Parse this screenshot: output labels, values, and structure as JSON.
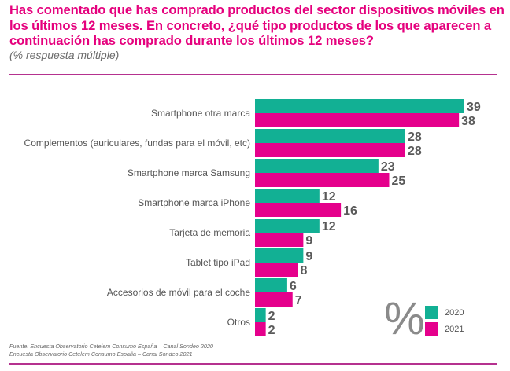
{
  "header": {
    "title": "Has comentado que has comprado productos del sector dispositivos móviles en los últimos 12 meses.  En concreto, ¿qué tipo productos de los que aparecen a continuación has comprado durante los últimos 12 meses?",
    "subtitle": "(% respuesta múltiple)"
  },
  "chart_data": {
    "type": "bar",
    "orientation": "horizontal",
    "title": "Has comentado que has comprado productos del sector dispositivos móviles en los últimos 12 meses. En concreto, ¿qué tipo productos de los que aparecen a continuación has comprado durante los últimos 12 meses?",
    "subtitle": "(% respuesta múltiple)",
    "unit_label": "%",
    "categories": [
      "Smartphone otra marca",
      "Complementos (auriculares, fundas para el móvil, etc)",
      "Smartphone marca Samsung",
      "Smartphone marca iPhone",
      "Tarjeta de memoria",
      "Tablet tipo iPad",
      "Accesorios de móvil para el coche",
      "Otros"
    ],
    "series": [
      {
        "name": "2020",
        "color": "#12b094",
        "values": [
          39,
          28,
          23,
          12,
          12,
          9,
          6,
          2
        ]
      },
      {
        "name": "2021",
        "color": "#e5008c",
        "values": [
          38,
          28,
          25,
          16,
          9,
          8,
          7,
          2
        ]
      }
    ],
    "xlim": [
      0,
      40
    ],
    "grid": false,
    "data_labels": true,
    "legend_position": "bottom-right"
  },
  "footer": {
    "source_line1": "Fuente: Encuesta Observatorio Cetelem Consumo España – Canal Sondeo 2020",
    "source_line2": "Encuesta Observatorio Cetelem Consumo España – Canal Sondeo 2021"
  }
}
